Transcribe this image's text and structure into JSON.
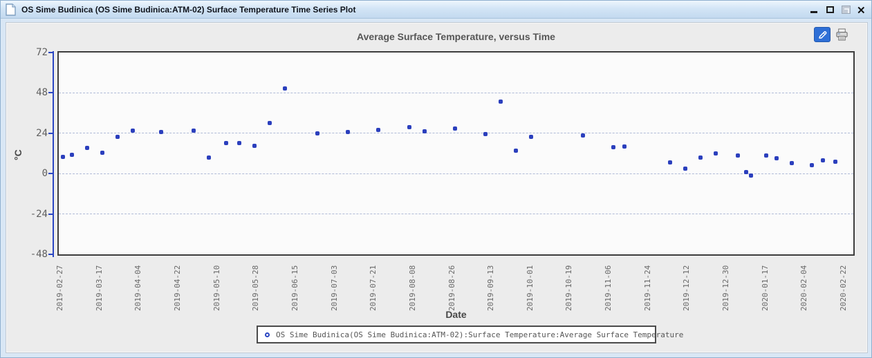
{
  "window": {
    "title": "OS Sime Budinica (OS Sime Budinica:ATM-02) Surface Temperature Time Series Plot",
    "icons": {
      "titlebar": "document-icon",
      "controls": [
        "minimize-icon",
        "maximize-icon",
        "restore-icon-disabled",
        "close-icon"
      ]
    }
  },
  "toolbar": {
    "icons": [
      "pencil-icon",
      "printer-icon"
    ],
    "edit_button_color": "#2e6fd6"
  },
  "legend": {
    "label": "OS Sime Budinica(OS Sime Budinica:ATM-02):Surface Temperature:Average Surface Temperature",
    "marker": "open-circle",
    "marker_color": "#2a46c2"
  },
  "chart_data": {
    "type": "scatter",
    "title": "Average Surface Temperature, versus Time",
    "xlabel": "Date",
    "ylabel": "°C",
    "ylim": [
      -48,
      72
    ],
    "y_ticks": [
      72,
      48,
      24,
      0,
      -24,
      -48
    ],
    "grid_values": [
      48,
      24,
      0,
      -24
    ],
    "grid_style": "dashed",
    "legend_position": "bottom",
    "marker_color": "#2b3fbd",
    "axis_color": "#2a46c2",
    "x_ticks": [
      "2019-02-27",
      "2019-03-17",
      "2019-04-04",
      "2019-04-22",
      "2019-05-10",
      "2019-05-28",
      "2019-06-15",
      "2019-07-03",
      "2019-07-21",
      "2019-08-08",
      "2019-08-26",
      "2019-09-13",
      "2019-10-01",
      "2019-10-19",
      "2019-11-06",
      "2019-11-24",
      "2019-12-12",
      "2019-12-30",
      "2020-01-17",
      "2020-02-04",
      "2020-02-22"
    ],
    "series": [
      {
        "name": "OS Sime Budinica(OS Sime Budinica:ATM-02):Surface Temperature:Average Surface Temperature",
        "points": [
          {
            "date": "2019-02-28",
            "value": 9.9
          },
          {
            "date": "2019-03-04",
            "value": 11.1
          },
          {
            "date": "2019-03-11",
            "value": 15.1
          },
          {
            "date": "2019-03-18",
            "value": 12.4
          },
          {
            "date": "2019-03-25",
            "value": 21.8
          },
          {
            "date": "2019-04-01",
            "value": 25.5
          },
          {
            "date": "2019-04-14",
            "value": 24.7
          },
          {
            "date": "2019-04-29",
            "value": 25.5
          },
          {
            "date": "2019-05-06",
            "value": 9.5
          },
          {
            "date": "2019-05-14",
            "value": 18.3
          },
          {
            "date": "2019-05-20",
            "value": 18.3
          },
          {
            "date": "2019-05-27",
            "value": 16.4
          },
          {
            "date": "2019-06-03",
            "value": 29.9
          },
          {
            "date": "2019-06-10",
            "value": 50.6
          },
          {
            "date": "2019-06-25",
            "value": 23.9
          },
          {
            "date": "2019-07-09",
            "value": 24.7
          },
          {
            "date": "2019-07-23",
            "value": 25.8
          },
          {
            "date": "2019-08-06",
            "value": 27.8
          },
          {
            "date": "2019-08-13",
            "value": 25.0
          },
          {
            "date": "2019-08-27",
            "value": 26.8
          },
          {
            "date": "2019-09-10",
            "value": 23.6
          },
          {
            "date": "2019-09-17",
            "value": 43.0
          },
          {
            "date": "2019-09-24",
            "value": 13.8
          },
          {
            "date": "2019-10-01",
            "value": 21.7
          },
          {
            "date": "2019-10-25",
            "value": 22.5
          },
          {
            "date": "2019-11-08",
            "value": 15.9
          },
          {
            "date": "2019-11-13",
            "value": 16.0
          },
          {
            "date": "2019-12-04",
            "value": 6.6
          },
          {
            "date": "2019-12-11",
            "value": 2.8
          },
          {
            "date": "2019-12-18",
            "value": 9.4
          },
          {
            "date": "2019-12-25",
            "value": 11.9
          },
          {
            "date": "2020-01-04",
            "value": 10.8
          },
          {
            "date": "2020-01-08",
            "value": 1.0
          },
          {
            "date": "2020-01-10",
            "value": -1.3
          },
          {
            "date": "2020-01-17",
            "value": 10.7
          },
          {
            "date": "2020-01-22",
            "value": 9.2
          },
          {
            "date": "2020-01-29",
            "value": 6.4
          },
          {
            "date": "2020-02-07",
            "value": 5.2
          },
          {
            "date": "2020-02-12",
            "value": 7.9
          },
          {
            "date": "2020-02-18",
            "value": 7.0
          }
        ]
      }
    ]
  }
}
